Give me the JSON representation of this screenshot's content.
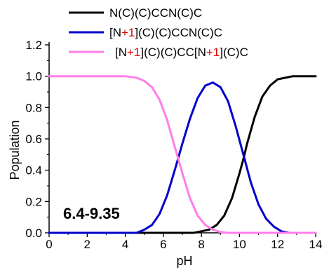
{
  "chart_data": {
    "type": "line",
    "xlabel": "pH",
    "ylabel": "Population",
    "xlim": [
      0,
      14
    ],
    "ylim": [
      0,
      1.2
    ],
    "xticks": [
      "0",
      "2",
      "4",
      "6",
      "8",
      "10",
      "12",
      "14"
    ],
    "yticks": [
      "0.0",
      "0.2",
      "0.4",
      "0.6",
      "0.8",
      "1.0",
      "1.2"
    ],
    "grid": false,
    "legend_position": "top",
    "annotation": "6.4-9.35",
    "series": [
      {
        "name": "N(C)(C)CCN(C)C",
        "color": "#000000",
        "legend_parts": [
          {
            "t": "N(C)(C)CCN(C)C",
            "c": "#000000"
          }
        ],
        "x": [
          0,
          7.6,
          8.0,
          8.4,
          8.8,
          9.2,
          9.6,
          10.0,
          10.2,
          10.4,
          10.8,
          11.2,
          11.6,
          12.0,
          12.4,
          12.8,
          14.0
        ],
        "y": [
          0,
          0,
          0.01,
          0.02,
          0.05,
          0.11,
          0.22,
          0.38,
          0.47,
          0.57,
          0.74,
          0.87,
          0.94,
          0.98,
          0.99,
          1.0,
          1.0
        ]
      },
      {
        "name": "[N+1](C)(C)CCN(C)C",
        "color": "#0000cc",
        "legend_parts": [
          {
            "t": "[N",
            "c": "#000000"
          },
          {
            "t": "+1",
            "c": "#e00000"
          },
          {
            "t": "](C)(C)CCN(C)C",
            "c": "#000000"
          }
        ],
        "x": [
          0,
          4.6,
          5.0,
          5.4,
          5.8,
          6.2,
          6.6,
          7.0,
          7.4,
          7.8,
          8.2,
          8.6,
          9.0,
          9.4,
          9.8,
          10.2,
          10.6,
          11.0,
          11.4,
          11.8,
          12.2,
          12.6,
          14.0
        ],
        "y": [
          0,
          0,
          0.02,
          0.05,
          0.12,
          0.24,
          0.4,
          0.57,
          0.73,
          0.86,
          0.94,
          0.96,
          0.93,
          0.84,
          0.68,
          0.5,
          0.32,
          0.18,
          0.09,
          0.04,
          0.01,
          0,
          0
        ]
      },
      {
        "name": "[N+1](C)(C)CC[N+1](C)C",
        "color": "#ff7ee8",
        "legend_parts": [
          {
            "t": "[N",
            "c": "#000000"
          },
          {
            "t": "+1",
            "c": "#e00000"
          },
          {
            "t": "](C)(C)CC[N",
            "c": "#000000"
          },
          {
            "t": "+1",
            "c": "#e00000"
          },
          {
            "t": "](C)C",
            "c": "#000000"
          }
        ],
        "x": [
          0,
          4.0,
          4.6,
          5.0,
          5.4,
          5.8,
          6.2,
          6.6,
          7.0,
          7.4,
          7.8,
          8.2,
          8.6,
          9.0,
          9.4,
          14.0
        ],
        "y": [
          1.0,
          1.0,
          0.99,
          0.97,
          0.93,
          0.85,
          0.72,
          0.55,
          0.38,
          0.22,
          0.11,
          0.05,
          0.02,
          0.005,
          0,
          0
        ]
      }
    ]
  }
}
